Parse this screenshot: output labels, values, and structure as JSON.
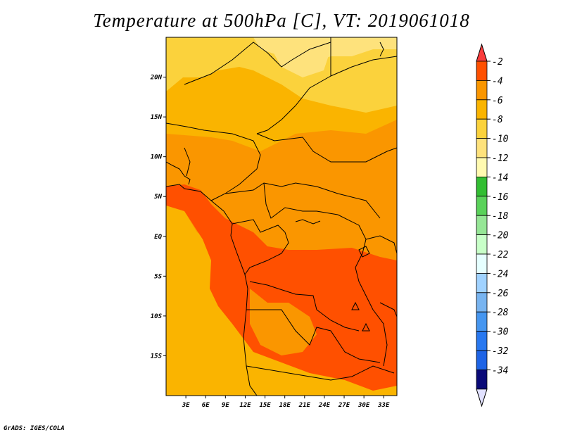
{
  "title": "Temperature at 500hPa [C], VT: 2019061018",
  "footer": "GrADS: IGES/COLA",
  "map": {
    "lon_range": [
      0,
      35
    ],
    "lat_range": [
      -20,
      25
    ],
    "lat_ticks": [
      {
        "value": 20,
        "label": "20N"
      },
      {
        "value": 15,
        "label": "15N"
      },
      {
        "value": 10,
        "label": "10N"
      },
      {
        "value": 5,
        "label": "5N"
      },
      {
        "value": 0,
        "label": "EQ"
      },
      {
        "value": -5,
        "label": "5S"
      },
      {
        "value": -10,
        "label": "10S"
      },
      {
        "value": -15,
        "label": "15S"
      }
    ],
    "lon_ticks": [
      {
        "value": 3,
        "label": "3E"
      },
      {
        "value": 6,
        "label": "6E"
      },
      {
        "value": 9,
        "label": "9E"
      },
      {
        "value": 12,
        "label": "12E"
      },
      {
        "value": 15,
        "label": "15E"
      },
      {
        "value": 18,
        "label": "18E"
      },
      {
        "value": 21,
        "label": "21E"
      },
      {
        "value": 24,
        "label": "24E"
      },
      {
        "value": 27,
        "label": "27E"
      },
      {
        "value": 30,
        "label": "30E"
      },
      {
        "value": 33,
        "label": "33E"
      }
    ]
  },
  "colorbar": {
    "levels": [
      {
        "label": "-2",
        "color": "#ff5000"
      },
      {
        "label": "-4",
        "color": "#fa9600"
      },
      {
        "label": "-6",
        "color": "#fab400"
      },
      {
        "label": "-8",
        "color": "#fbd23c"
      },
      {
        "label": "-10",
        "color": "#fee27c"
      },
      {
        "label": "-12",
        "color": "#fffab0"
      },
      {
        "label": "-14",
        "color": "#32be32"
      },
      {
        "label": "-16",
        "color": "#5ad25a"
      },
      {
        "label": "-18",
        "color": "#96e696"
      },
      {
        "label": "-20",
        "color": "#c8ffc8"
      },
      {
        "label": "-22",
        "color": "#e6ffff"
      },
      {
        "label": "-24",
        "color": "#a0d2ff"
      },
      {
        "label": "-26",
        "color": "#78b4f0"
      },
      {
        "label": "-28",
        "color": "#4696f0"
      },
      {
        "label": "-30",
        "color": "#2878f0"
      },
      {
        "label": "-32",
        "color": "#1e64e6"
      },
      {
        "label": "-34",
        "color": "#0a46c8"
      }
    ],
    "top_color": "#fa3c3c",
    "bottom_end_color": "#0a0a78",
    "bottom_arrow_color": "#e1e1ff"
  },
  "field": {
    "colors": {
      "t2": "#ff5000",
      "t4": "#fa9600",
      "t6": "#fab400",
      "t8": "#fbd23c",
      "t10": "#fee27c"
    }
  }
}
